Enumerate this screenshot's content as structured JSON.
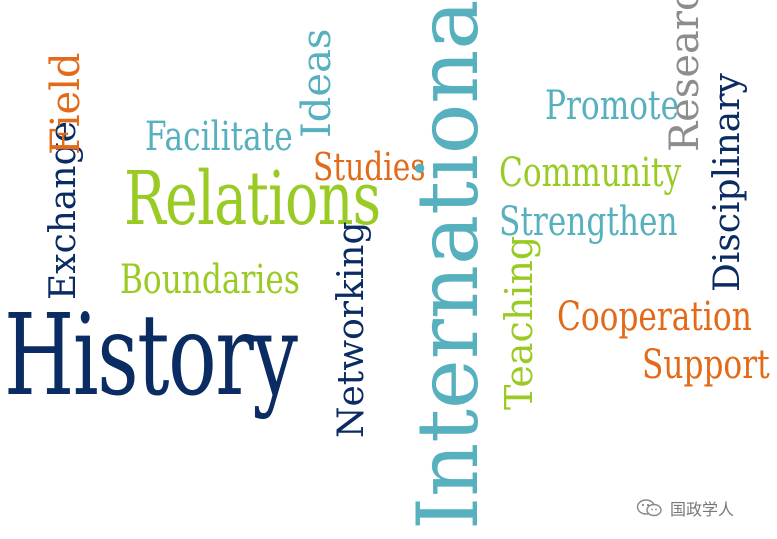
{
  "colors": {
    "navy": "#0b2b63",
    "teal": "#57b0bd",
    "green": "#9acb24",
    "orange": "#e26a18",
    "gray": "#8d8d8d",
    "background": "#ffffff"
  },
  "words": {
    "history": "History",
    "relations": "Relations",
    "international": "International",
    "facilitate": "Facilitate",
    "ideas": "Ideas",
    "studies": "Studies",
    "boundaries": "Boundaries",
    "exchange": "Exchange",
    "field": "Field",
    "networking": "Networking",
    "promote": "Promote",
    "research": "Research",
    "community": "Community",
    "strengthen": "Strengthen",
    "disciplinary": "Disciplinary",
    "teaching": "Teaching",
    "cooperation": "Cooperation",
    "support": "Support"
  },
  "watermark": {
    "icon": "wechat-icon",
    "text": "国政学人"
  }
}
